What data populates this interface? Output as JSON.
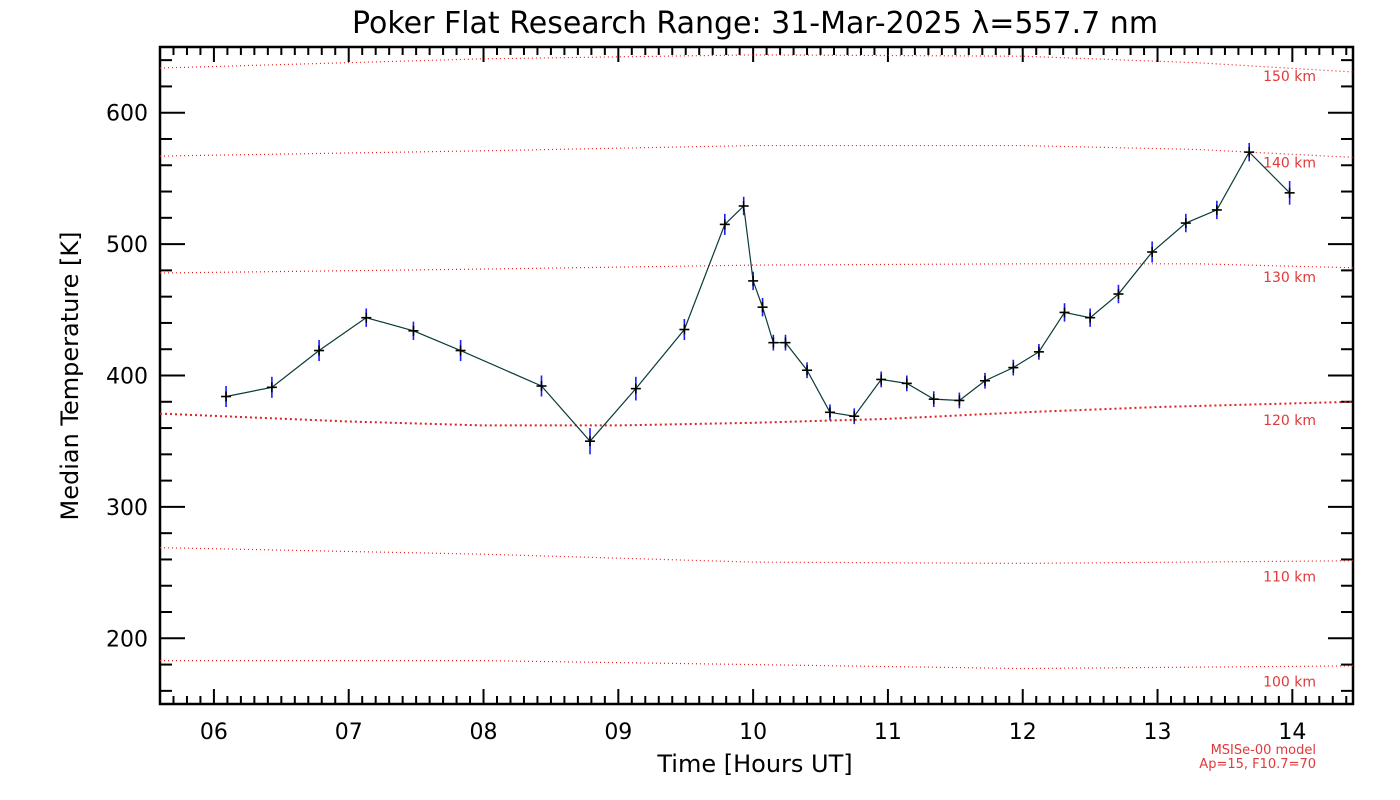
{
  "chart_data": {
    "type": "line",
    "title": "Poker Flat Research Range: 31-Mar-2025 λ=557.7 nm",
    "xlabel": "Time [Hours UT]",
    "ylabel": "Median Temperature [K]",
    "xlim": [
      5.6,
      14.45
    ],
    "ylim": [
      150,
      650
    ],
    "x_ticks": [
      6,
      7,
      8,
      9,
      10,
      11,
      12,
      13,
      14
    ],
    "x_tick_labels": [
      "06",
      "07",
      "08",
      "09",
      "10",
      "11",
      "12",
      "13",
      "14"
    ],
    "y_ticks": [
      200,
      300,
      400,
      500,
      600
    ],
    "y_tick_labels": [
      "200",
      "300",
      "400",
      "500",
      "600"
    ],
    "grid": false,
    "series": [
      {
        "color": "#0a3a3a",
        "errorbar_color": "#1a1aff",
        "x": [
          6.09,
          6.43,
          6.78,
          7.13,
          7.48,
          7.83,
          8.43,
          8.79,
          9.13,
          9.49,
          9.79,
          9.93,
          10.0,
          10.07,
          10.15,
          10.24,
          10.4,
          10.57,
          10.75,
          10.95,
          11.14,
          11.34,
          11.53,
          11.72,
          11.93,
          12.12,
          12.31,
          12.5,
          12.71,
          12.96,
          13.21,
          13.44,
          13.68,
          13.98
        ],
        "y": [
          384,
          391,
          419,
          444,
          434,
          419,
          392,
          350,
          390,
          435,
          515,
          529,
          472,
          452,
          425,
          425,
          404,
          372,
          369,
          397,
          394,
          382,
          381,
          396,
          406,
          418,
          448,
          444,
          462,
          494,
          516,
          526,
          570,
          539
        ],
        "err": [
          8,
          8,
          8,
          7,
          7,
          8,
          8,
          10,
          9,
          8,
          8,
          7,
          7,
          7,
          6,
          6,
          6,
          6,
          6,
          6,
          6,
          6,
          6,
          6,
          6,
          6,
          7,
          7,
          7,
          8,
          7,
          7,
          7,
          9
        ]
      }
    ],
    "model_curves": [
      {
        "label": "150 km",
        "x": [
          5.6,
          8.0,
          10.0,
          12.0,
          13.3,
          14.45
        ],
        "y": [
          634,
          641,
          644,
          643,
          638,
          631
        ]
      },
      {
        "label": "140 km",
        "x": [
          5.6,
          8.0,
          10.0,
          12.0,
          13.3,
          14.45
        ],
        "y": [
          567,
          571,
          575,
          575,
          572,
          566
        ]
      },
      {
        "label": "130 km",
        "x": [
          5.6,
          8.0,
          10.0,
          12.0,
          13.3,
          14.45
        ],
        "y": [
          478,
          481,
          484,
          485,
          485,
          482
        ]
      },
      {
        "label": "120 km",
        "x": [
          5.6,
          7.0,
          8.0,
          9.0,
          10.0,
          11.0,
          12.0,
          13.0,
          14.45
        ],
        "y": [
          371,
          365,
          362,
          362,
          364,
          367,
          372,
          376,
          380
        ]
      },
      {
        "label": "110 km",
        "x": [
          5.6,
          8.0,
          10.0,
          12.0,
          14.45
        ],
        "y": [
          269,
          264,
          258,
          257,
          259
        ]
      },
      {
        "label": "100 km",
        "x": [
          5.6,
          8.0,
          10.0,
          12.0,
          14.45
        ],
        "y": [
          183,
          183,
          180,
          177,
          179
        ]
      }
    ],
    "annotations": [
      "MSISe-00 model",
      "Ap=15, F10.7=70"
    ]
  }
}
